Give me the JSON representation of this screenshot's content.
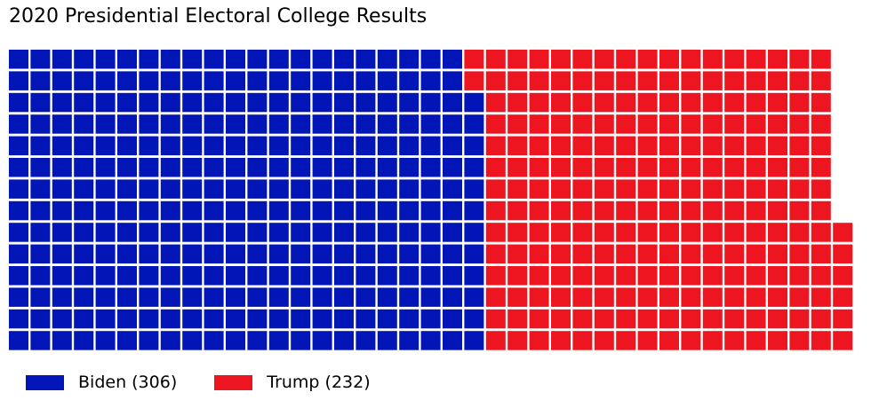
{
  "chart_data": {
    "type": "waffle",
    "title": "2020 Presidential Electoral College Results",
    "total": 538,
    "rows": 14,
    "fill_order": "column-major, bottom-to-top",
    "series": [
      {
        "name": "Biden",
        "value": 306,
        "color": "#0216b8",
        "legend_label": "Biden (306)"
      },
      {
        "name": "Trump",
        "value": 232,
        "color": "#ec1520",
        "legend_label": "Trump (232)"
      }
    ],
    "legend": {
      "position": "bottom-left"
    },
    "grid": false
  }
}
